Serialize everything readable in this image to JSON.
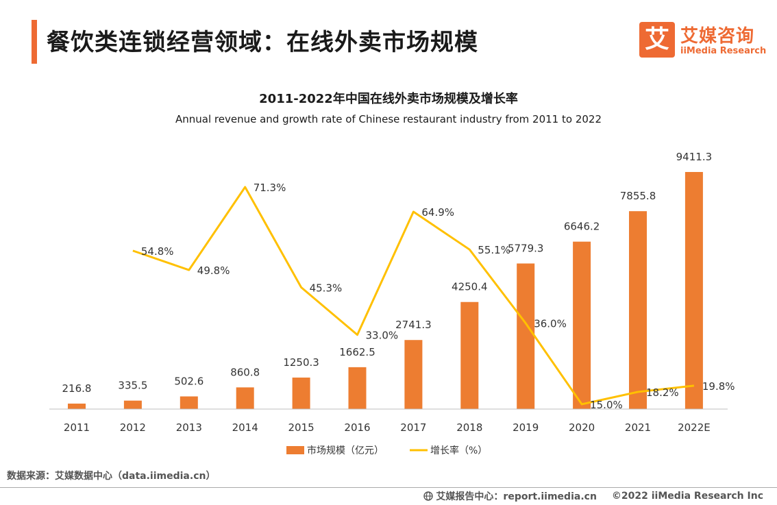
{
  "header": {
    "title": "餐饮类连锁经营领域：在线外卖市场规模",
    "logo_mark": "艾",
    "logo_cn": "艾媒咨询",
    "logo_en": "iiMedia Research"
  },
  "colors": {
    "accent": "#ee6a33",
    "bar": "#ed7d31",
    "line": "#ffc000"
  },
  "chart_data": {
    "type": "bar",
    "title": "2011-2022年中国在线外卖市场规模及增长率",
    "subtitle": "Annual revenue and growth rate of Chinese restaurant industry from 2011 to 2022",
    "categories": [
      "2011",
      "2012",
      "2013",
      "2014",
      "2015",
      "2016",
      "2017",
      "2018",
      "2019",
      "2020",
      "2021",
      "2022E"
    ],
    "series": [
      {
        "name": "市场规模（亿元）",
        "type": "bar",
        "values": [
          216.8,
          335.5,
          502.6,
          860.8,
          1250.3,
          1662.5,
          2741.3,
          4250.4,
          5779.3,
          6646.2,
          7855.8,
          9411.3
        ]
      },
      {
        "name": "增长率（%）",
        "type": "line",
        "values": [
          null,
          54.8,
          49.8,
          71.3,
          45.3,
          33.0,
          64.9,
          55.1,
          36.0,
          15.0,
          18.2,
          19.8
        ]
      }
    ],
    "bar_labels": [
      "216.8",
      "335.5",
      "502.6",
      "860.8",
      "1250.3",
      "1662.5",
      "2741.3",
      "4250.4",
      "5779.3",
      "6646.2",
      "7855.8",
      "9411.3"
    ],
    "line_labels": [
      "",
      "54.8%",
      "49.8%",
      "71.3%",
      "45.3%",
      "33.0%",
      "64.9%",
      "55.1%",
      "36.0%",
      "15.0%",
      "18.2%",
      "19.8%"
    ],
    "legend": [
      "市场规模（亿元）",
      "增长率（%）"
    ],
    "legend_position": "bottom",
    "grid": false
  },
  "footer": {
    "source": "数据来源：艾媒数据中心（data.iimedia.cn）",
    "report": "艾媒报告中心：report.iimedia.cn",
    "copyright": "©2022 iiMedia Research Inc"
  }
}
